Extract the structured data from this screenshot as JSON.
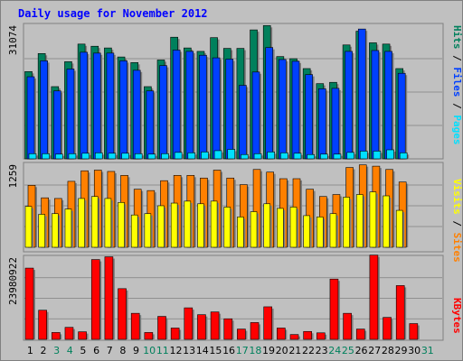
{
  "colors": {
    "background": "#c0c0c0",
    "title": "#0000ff",
    "hits": "#00805c",
    "files": "#0040ff",
    "pages": "#00e0ff",
    "visits": "#ffff00",
    "sites": "#ff8000",
    "kbytes": "#ff0000",
    "weekend_label": "#00805c",
    "weekday_label": "#000000"
  },
  "chart_data": [
    {
      "type": "bar",
      "title": "Daily usage for November 2012",
      "max_label": "31074",
      "legend": {
        "pages": "Pages",
        "files": "Files",
        "hits": "Hits",
        "sep": " / "
      },
      "x": [
        "1",
        "2",
        "3",
        "4",
        "5",
        "6",
        "7",
        "8",
        "9",
        "10",
        "11",
        "12",
        "13",
        "14",
        "15",
        "16",
        "17",
        "18",
        "19",
        "20",
        "21",
        "22",
        "23",
        "24",
        "25",
        "26",
        "27",
        "28",
        "29",
        "30",
        "31"
      ],
      "weekend_days": [
        "3",
        "4",
        "10",
        "11",
        "17",
        "18",
        "24",
        "25",
        "31"
      ],
      "ylim": [
        0,
        31074
      ],
      "series": [
        {
          "name": "Hits",
          "values": [
            20300,
            24500,
            16800,
            22600,
            26700,
            26200,
            25800,
            23700,
            22400,
            16800,
            23000,
            28300,
            25800,
            25000,
            28200,
            25700,
            25700,
            30000,
            31000,
            23800,
            23300,
            21000,
            17500,
            17800,
            26500,
            29700,
            27000,
            26700,
            21000,
            0,
            0
          ]
        },
        {
          "name": "Files",
          "values": [
            19100,
            22800,
            15800,
            20900,
            24800,
            24600,
            24600,
            22800,
            20600,
            15800,
            21700,
            25300,
            25000,
            24100,
            23500,
            23200,
            17100,
            20200,
            25900,
            23100,
            22700,
            19600,
            16300,
            16400,
            25000,
            30200,
            25200,
            25000,
            19900,
            0,
            0
          ]
        },
        {
          "name": "Pages",
          "values": [
            1200,
            1200,
            1100,
            1200,
            1300,
            1400,
            1300,
            1300,
            1200,
            1100,
            1200,
            1500,
            1400,
            1600,
            1900,
            2200,
            1000,
            1200,
            1600,
            1400,
            1300,
            1000,
            1100,
            1100,
            1500,
            1800,
            1800,
            2100,
            1400,
            0,
            0
          ]
        }
      ]
    },
    {
      "type": "bar",
      "max_label": "1259",
      "legend": {
        "sites": "Sites",
        "visits": "Visits",
        "sep": " / "
      },
      "x": [
        "1",
        "2",
        "3",
        "4",
        "5",
        "6",
        "7",
        "8",
        "9",
        "10",
        "11",
        "12",
        "13",
        "14",
        "15",
        "16",
        "17",
        "18",
        "19",
        "20",
        "21",
        "22",
        "23",
        "24",
        "25",
        "26",
        "27",
        "28",
        "29",
        "30",
        "31"
      ],
      "ylim": [
        0,
        1259
      ],
      "series": [
        {
          "name": "Sites",
          "values": [
            940,
            750,
            740,
            1000,
            1160,
            1170,
            1150,
            1090,
            880,
            860,
            1010,
            1090,
            1090,
            1050,
            1170,
            1050,
            950,
            1180,
            1140,
            1040,
            1040,
            880,
            770,
            800,
            1210,
            1250,
            1230,
            1180,
            990,
            0,
            0
          ]
        },
        {
          "name": "Visits",
          "values": [
            620,
            500,
            510,
            580,
            740,
            770,
            740,
            680,
            490,
            510,
            630,
            670,
            700,
            660,
            700,
            610,
            460,
            540,
            660,
            590,
            610,
            480,
            460,
            510,
            760,
            800,
            840,
            780,
            560,
            0,
            0
          ]
        }
      ]
    },
    {
      "type": "bar",
      "max_label": "23980922",
      "legend": {
        "kbytes": "KBytes"
      },
      "x": [
        "1",
        "2",
        "3",
        "4",
        "5",
        "6",
        "7",
        "8",
        "9",
        "10",
        "11",
        "12",
        "13",
        "14",
        "15",
        "16",
        "17",
        "18",
        "19",
        "20",
        "21",
        "22",
        "23",
        "24",
        "25",
        "26",
        "27",
        "28",
        "29",
        "30",
        "31"
      ],
      "ylim": [
        0,
        23980922
      ],
      "series": [
        {
          "name": "KBytes",
          "values": [
            20800000,
            8500000,
            2000000,
            3500000,
            2200000,
            23300000,
            24100000,
            14800000,
            7600000,
            2000000,
            6700000,
            3300000,
            9200000,
            7200000,
            8000000,
            6000000,
            3000000,
            4900000,
            9500000,
            3300000,
            1400000,
            2300000,
            1900000,
            17600000,
            7600000,
            3000000,
            24600000,
            6400000,
            15700000,
            4600000,
            0
          ]
        }
      ]
    }
  ]
}
